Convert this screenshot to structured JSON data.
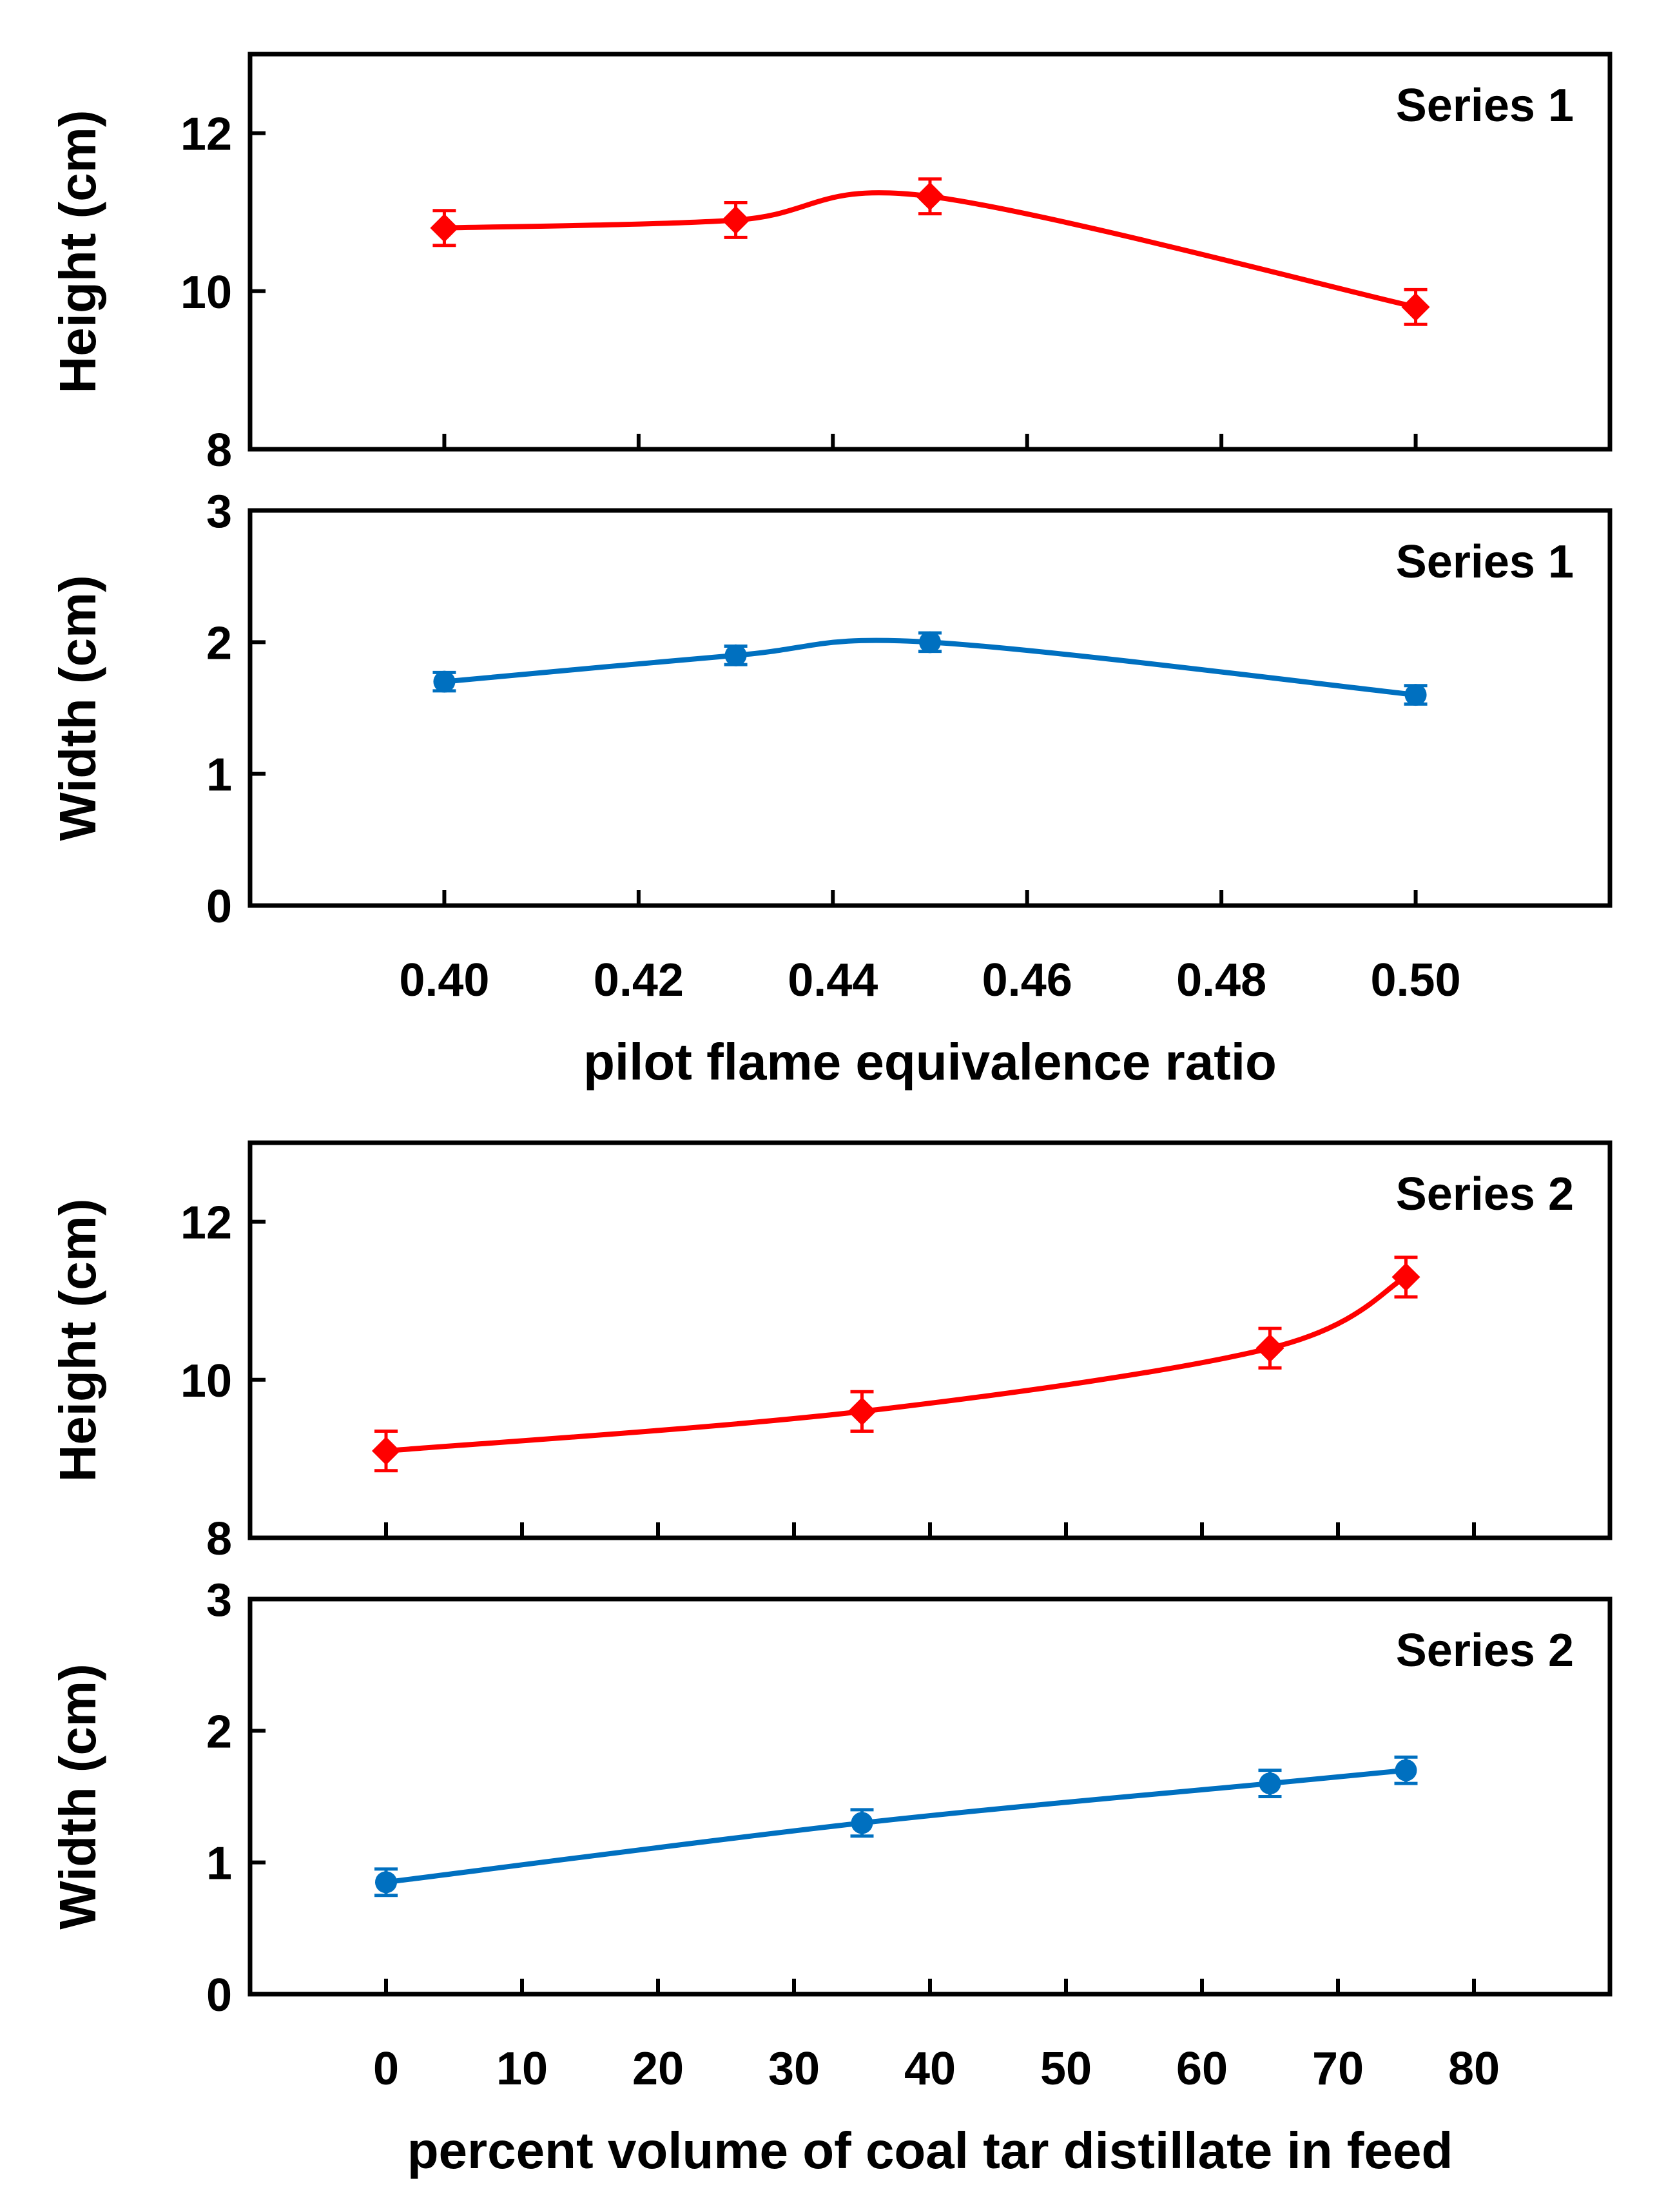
{
  "chart_data": [
    {
      "type": "line",
      "panel": "top-height",
      "series_label": "Series 1",
      "ylabel": "Height (cm)",
      "xlabel": "",
      "ylim": [
        8,
        13
      ],
      "yticks": [
        8,
        10,
        12
      ],
      "xlim": [
        0.38,
        0.52
      ],
      "xticks": [
        0.4,
        0.42,
        0.44,
        0.46,
        0.48,
        0.5
      ],
      "marker": "diamond",
      "color": "#ff0000",
      "x": [
        0.4,
        0.43,
        0.45,
        0.5
      ],
      "values": [
        10.8,
        10.9,
        11.2,
        9.8
      ],
      "errors": [
        0.22,
        0.22,
        0.22,
        0.22
      ]
    },
    {
      "type": "line",
      "panel": "top-width",
      "series_label": "Series 1",
      "ylabel": "Width (cm)",
      "xlabel": "pilot flame equivalence ratio",
      "ylim": [
        0,
        3
      ],
      "yticks": [
        0,
        1,
        2,
        3
      ],
      "xlim": [
        0.38,
        0.52
      ],
      "xticks": [
        0.4,
        0.42,
        0.44,
        0.46,
        0.48,
        0.5
      ],
      "xtick_labels": [
        "0.40",
        "0.42",
        "0.44",
        "0.46",
        "0.48",
        "0.50"
      ],
      "marker": "circle",
      "color": "#0070c0",
      "x": [
        0.4,
        0.43,
        0.45,
        0.5
      ],
      "values": [
        1.7,
        1.9,
        2.0,
        1.6
      ],
      "errors": [
        0.07,
        0.07,
        0.07,
        0.07
      ]
    },
    {
      "type": "line",
      "panel": "bottom-height",
      "series_label": "Series 2",
      "ylabel": "Height (cm)",
      "xlabel": "",
      "ylim": [
        8,
        13
      ],
      "yticks": [
        8,
        10,
        12
      ],
      "xlim": [
        -10,
        90
      ],
      "xticks": [
        0,
        10,
        20,
        30,
        40,
        50,
        60,
        70,
        80
      ],
      "marker": "diamond",
      "color": "#ff0000",
      "x": [
        0,
        35,
        65,
        75
      ],
      "values": [
        9.1,
        9.6,
        10.4,
        11.3
      ],
      "errors": [
        0.25,
        0.25,
        0.25,
        0.25
      ]
    },
    {
      "type": "line",
      "panel": "bottom-width",
      "series_label": "Series 2",
      "ylabel": "Width (cm)",
      "xlabel": "percent volume of coal tar distillate in feed",
      "ylim": [
        0,
        3
      ],
      "yticks": [
        0,
        1,
        2,
        3
      ],
      "xlim": [
        -10,
        90
      ],
      "xticks": [
        0,
        10,
        20,
        30,
        40,
        50,
        60,
        70,
        80
      ],
      "xtick_labels": [
        "0",
        "10",
        "20",
        "30",
        "40",
        "50",
        "60",
        "70",
        "80"
      ],
      "marker": "circle",
      "color": "#0070c0",
      "x": [
        0,
        35,
        65,
        75
      ],
      "values": [
        0.85,
        1.3,
        1.6,
        1.7
      ],
      "errors": [
        0.1,
        0.1,
        0.1,
        0.1
      ]
    }
  ]
}
